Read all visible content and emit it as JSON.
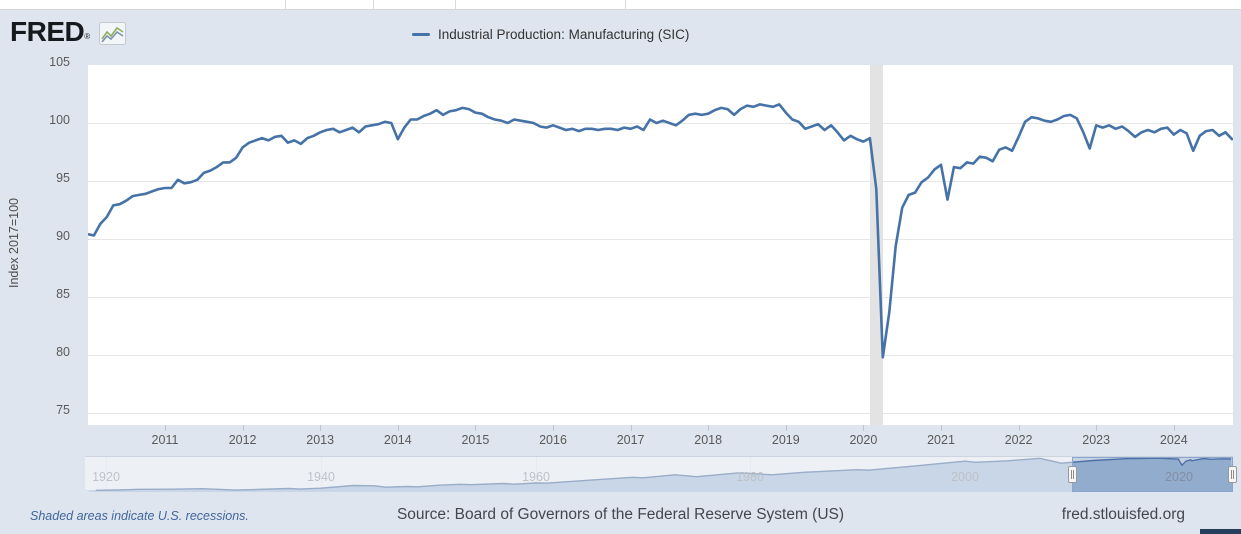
{
  "page": {
    "background": "#dfe5ee",
    "accent_line_color": "#4572a7"
  },
  "header": {
    "logo_text": "FRED",
    "registered_mark": "®",
    "legend": {
      "series_label": "Industrial Production: Manufacturing (SIC)",
      "line_color": "#4572a7"
    }
  },
  "chart_data": {
    "type": "line",
    "title": "Industrial Production: Manufacturing (SIC)",
    "ylabel": "Index 2017=100",
    "y_ticks": [
      105,
      100,
      95,
      90,
      85,
      80,
      75
    ],
    "ylim": [
      74,
      105
    ],
    "x_ticks": [
      2011,
      2012,
      2013,
      2014,
      2015,
      2016,
      2017,
      2018,
      2019,
      2020,
      2021,
      2022,
      2023,
      2024
    ],
    "x_range_years": [
      2010.0,
      2024.78
    ],
    "grid": "horizontal-only",
    "start_date": "2010-01",
    "frequency": "monthly",
    "recession_bands": [
      {
        "start": 2020.08,
        "end": 2020.25
      }
    ],
    "series_name": "Industrial Production: Manufacturing (SIC)",
    "values": [
      90.4,
      90.3,
      91.3,
      91.9,
      92.9,
      93.0,
      93.3,
      93.7,
      93.8,
      93.9,
      94.1,
      94.3,
      94.4,
      94.4,
      95.1,
      94.8,
      94.9,
      95.1,
      95.7,
      95.9,
      96.2,
      96.6,
      96.6,
      97.0,
      97.9,
      98.3,
      98.5,
      98.7,
      98.5,
      98.8,
      98.9,
      98.3,
      98.5,
      98.2,
      98.7,
      98.9,
      99.2,
      99.4,
      99.5,
      99.2,
      99.4,
      99.6,
      99.2,
      99.7,
      99.8,
      99.9,
      100.1,
      100.0,
      98.6,
      99.6,
      100.3,
      100.3,
      100.6,
      100.8,
      101.1,
      100.7,
      101.0,
      101.1,
      101.3,
      101.2,
      100.9,
      100.8,
      100.5,
      100.3,
      100.2,
      100.0,
      100.3,
      100.2,
      100.1,
      100.0,
      99.7,
      99.6,
      99.8,
      99.6,
      99.4,
      99.5,
      99.3,
      99.5,
      99.5,
      99.4,
      99.5,
      99.5,
      99.4,
      99.6,
      99.5,
      99.7,
      99.4,
      100.3,
      100.0,
      100.2,
      100.0,
      99.8,
      100.2,
      100.7,
      100.8,
      100.7,
      100.8,
      101.1,
      101.3,
      101.2,
      100.7,
      101.2,
      101.5,
      101.4,
      101.6,
      101.5,
      101.4,
      101.6,
      100.9,
      100.3,
      100.1,
      99.5,
      99.7,
      99.9,
      99.4,
      99.8,
      99.2,
      98.5,
      98.9,
      98.6,
      98.4,
      98.7,
      94.3,
      79.8,
      83.7,
      89.4,
      92.7,
      93.8,
      94.0,
      94.9,
      95.3,
      96.0,
      96.4,
      93.4,
      96.2,
      96.1,
      96.6,
      96.5,
      97.1,
      97.0,
      96.7,
      97.7,
      97.9,
      97.6,
      98.8,
      100.1,
      100.5,
      100.4,
      100.2,
      100.1,
      100.3,
      100.6,
      100.7,
      100.4,
      99.2,
      97.8,
      99.8,
      99.6,
      99.8,
      99.5,
      99.7,
      99.3,
      98.8,
      99.2,
      99.4,
      99.2,
      99.5,
      99.6,
      99.0,
      99.4,
      99.1,
      97.6,
      98.9,
      99.3,
      99.4,
      98.9,
      99.2,
      98.6
    ]
  },
  "navigator": {
    "x_labels": [
      "1920",
      "1940",
      "1960",
      "1980",
      "2000",
      "2020"
    ],
    "tick_years": [
      1920,
      1940,
      1960,
      1980,
      2000,
      2020
    ],
    "years_range": [
      1918,
      2025
    ],
    "selected_range": [
      2010.0,
      2025.0
    ],
    "series": {
      "x": [
        1919,
        1921,
        1923,
        1926,
        1929,
        1932,
        1934,
        1937,
        1938,
        1940,
        1943,
        1945,
        1946,
        1948,
        1949,
        1951,
        1953,
        1954,
        1957,
        1958,
        1960,
        1961,
        1965,
        1969,
        1970,
        1973,
        1975,
        1979,
        1982,
        1985,
        1990,
        1991,
        1995,
        2000,
        2001,
        2004,
        2007,
        2009,
        2012,
        2015,
        2018,
        2019.9,
        2020.25,
        2020.6,
        2021.05,
        2021.15,
        2022.3,
        2022.95,
        2024,
        2024.83
      ],
      "y": [
        5,
        6,
        8,
        8.5,
        10,
        5.8,
        7.5,
        10.5,
        8.8,
        11.5,
        19.5,
        18.5,
        14.5,
        16.5,
        15.5,
        20.5,
        23,
        21.8,
        25.5,
        23.5,
        27,
        26.5,
        35.5,
        44,
        42.5,
        51.5,
        46,
        57.5,
        51.5,
        59,
        67,
        65.5,
        77,
        92.5,
        89,
        93.5,
        101,
        86.5,
        94.5,
        100,
        101.5,
        99,
        80.5,
        92.5,
        96.5,
        93.5,
        100.5,
        98,
        99.5,
        99
      ]
    }
  },
  "footer": {
    "recession_note": "Shaded areas indicate U.S. recessions.",
    "source": "Source: Board of Governors of the Federal Reserve System (US)",
    "site": "fred.stlouisfed.org"
  }
}
